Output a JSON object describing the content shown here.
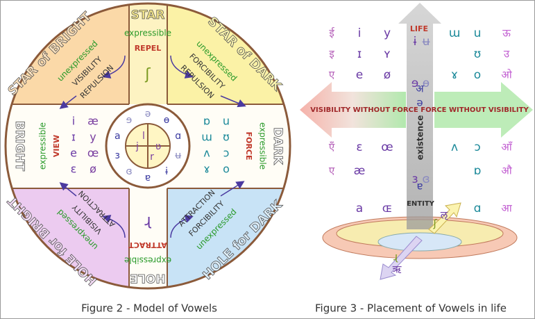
{
  "figure2": {
    "caption": "Figure 2 - Model of Vowels",
    "star": {
      "title": "STAR",
      "quality": "expressible",
      "action": "REPEL",
      "sound": "ʃ"
    },
    "star_bright": {
      "title": "STAR of BRIGHT",
      "quality": "unexpressed",
      "force": "VISIBILITY",
      "action": "REPULSION"
    },
    "star_dark": {
      "title": "STAR of DARK",
      "quality": "unexpressed",
      "force": "FORCIBILITY",
      "action": "REPULSION"
    },
    "bright": {
      "title": "BRIGHT",
      "quality": "expressible",
      "action": "VIEW",
      "vowels": [
        "i",
        "æ",
        "ɪ",
        "y",
        "e",
        "œ",
        "ɛ",
        "ø"
      ]
    },
    "dark": {
      "title": "DARK",
      "quality": "expressible",
      "action": "FORCE",
      "vowels": [
        "ɒ",
        "u",
        "ɯ",
        "ʊ",
        "ʌ",
        "ɔ",
        "ɤ",
        "o"
      ]
    },
    "hole_bright": {
      "title": "HOLE for BRIGHT",
      "quality": "unexpressed",
      "force": "VISIBILITY",
      "action": "ATTRACTION"
    },
    "hole_dark": {
      "title": "HOLE for DARK",
      "quality": "unexpressed",
      "force": "FORCIBILITY",
      "action": "ATTRACTION"
    },
    "hole": {
      "title": "HOLE",
      "quality": "expressible",
      "action": "ATTRACT",
      "sound": "ɻ"
    },
    "center": {
      "ring": [
        "ə",
        "ɵ",
        "ɑ",
        "ʉ",
        "ɨ",
        "ɐ",
        "ɞ",
        "ɜ",
        "a",
        "ɘ"
      ],
      "inner": [
        "l",
        "ʋ",
        "r",
        "j"
      ]
    }
  },
  "figure3": {
    "caption": "Figure 3 - Placement of Vowels in life",
    "life": "LIFE",
    "left_arrow": "VISIBILITY WITHOUT FORCE",
    "right_arrow": "FORCE WITHOUT VISIBILITY",
    "existence": "existence",
    "entity": "ENTITY",
    "rows": [
      [
        "ई",
        "i",
        "y",
        "ɨ",
        "ʉ",
        "ɯ",
        "u",
        "ऊ"
      ],
      [
        "इ",
        "ɪ",
        "ʏ",
        null,
        null,
        null,
        "ʊ",
        "उ"
      ],
      [
        "ए",
        "e",
        "ø",
        "ɘ",
        "ɵ",
        "ɤ",
        "o",
        "ओ"
      ],
      [
        "एँ",
        "ɛ",
        "œ",
        null,
        null,
        "ʌ",
        "ɔ",
        "ऑं"
      ],
      [
        "ए",
        "æ",
        null,
        "ɜ",
        "ɞ",
        null,
        "ɒ",
        "औ"
      ],
      [
        null,
        "a",
        "ɶ",
        null,
        null,
        null,
        "ɑ",
        "आ"
      ]
    ],
    "center_extra": [
      "अ",
      "ə",
      "ɐ"
    ],
    "base_sounds": [
      "ऌ",
      "ʃ",
      "ऋ",
      "ɻ"
    ]
  }
}
